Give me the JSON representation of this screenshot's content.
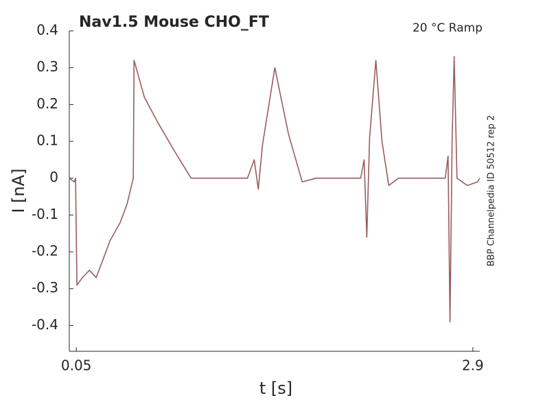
{
  "chart_data": {
    "type": "line",
    "title": "Nav1.5  Mouse  CHO_FT",
    "subtitle": "20 °C  Ramp",
    "annotation": "BBP Channelpedia ID 50512 rep 2",
    "xlabel": "t [s]",
    "ylabel": "I [nA]",
    "xlim": [
      0,
      2.95
    ],
    "ylim": [
      -0.47,
      0.4
    ],
    "xticks": [
      0.05,
      2.9
    ],
    "yticks": [
      -0.4,
      -0.3,
      -0.2,
      -0.1,
      0,
      0.1,
      0.2,
      0.3,
      0.4
    ],
    "grid": false,
    "series": [
      {
        "color": "#9a5c5c",
        "x": [
          0.001,
          0.035,
          0.045,
          0.055,
          0.094,
          0.144,
          0.193,
          0.243,
          0.292,
          0.366,
          0.415,
          0.46,
          0.465,
          0.539,
          0.638,
          0.761,
          0.875,
          0.983,
          1.28,
          1.329,
          1.358,
          1.388,
          1.477,
          1.575,
          1.674,
          1.773,
          2.094,
          2.119,
          2.138,
          2.158,
          2.203,
          2.247,
          2.296,
          2.366,
          2.702,
          2.722,
          2.736,
          2.751,
          2.766,
          2.786,
          2.86,
          2.934,
          2.95
        ],
        "values": [
          0,
          -0.01,
          0.0,
          -0.29,
          -0.27,
          -0.25,
          -0.27,
          -0.22,
          -0.17,
          -0.12,
          -0.07,
          0.0,
          0.32,
          0.22,
          0.15,
          0.07,
          0.0,
          0.0,
          0.0,
          0.05,
          -0.03,
          0.09,
          0.3,
          0.12,
          -0.01,
          0.0,
          0.0,
          0.05,
          -0.16,
          0.11,
          0.32,
          0.1,
          -0.02,
          0.0,
          0.0,
          0.06,
          -0.39,
          0.1,
          0.33,
          0.0,
          -0.02,
          -0.01,
          0.0
        ]
      }
    ]
  }
}
